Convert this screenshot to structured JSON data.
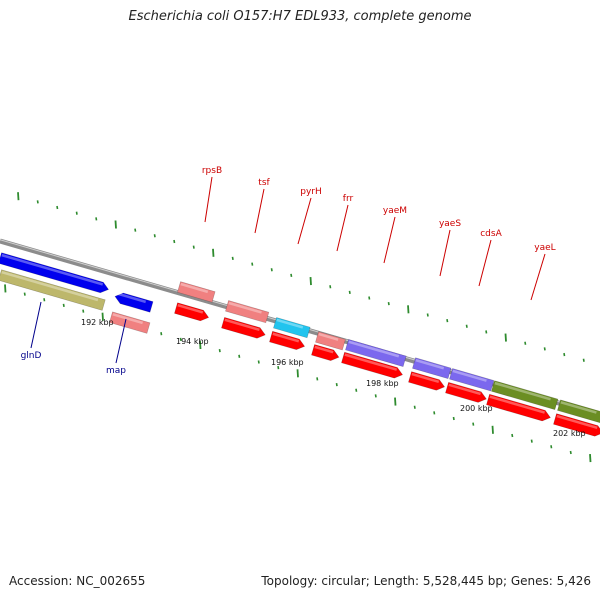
{
  "title": "Escherichia coli O157:H7 EDL933, complete genome",
  "footer": {
    "accession": "Accession: NC_002655",
    "stats": "Topology: circular; Length: 5,528,445 bp; Genes: 5,426"
  },
  "colors": {
    "backbone": "#8c8c8c",
    "tick": "#2e8b2e",
    "label_top": "#cc0000",
    "label_bottom": "#00008b",
    "blue": "#0000ee",
    "pink": "#f08080",
    "red": "#ff0000",
    "cyan": "#22c4ee",
    "purple": "#7b68ee",
    "olive": "#6b8e23",
    "khaki": "#bdb76b"
  },
  "scale_labels": [
    "192 kbp",
    "194 kbp",
    "196 kbp",
    "198 kbp",
    "200 kbp",
    "202 kbp"
  ],
  "gene_labels_top": [
    "rpsB",
    "tsf",
    "pyrH",
    "frr",
    "yaeM",
    "yaeS",
    "cdsA",
    "yaeL"
  ],
  "gene_labels_bottom": [
    "glnD",
    "map"
  ]
}
